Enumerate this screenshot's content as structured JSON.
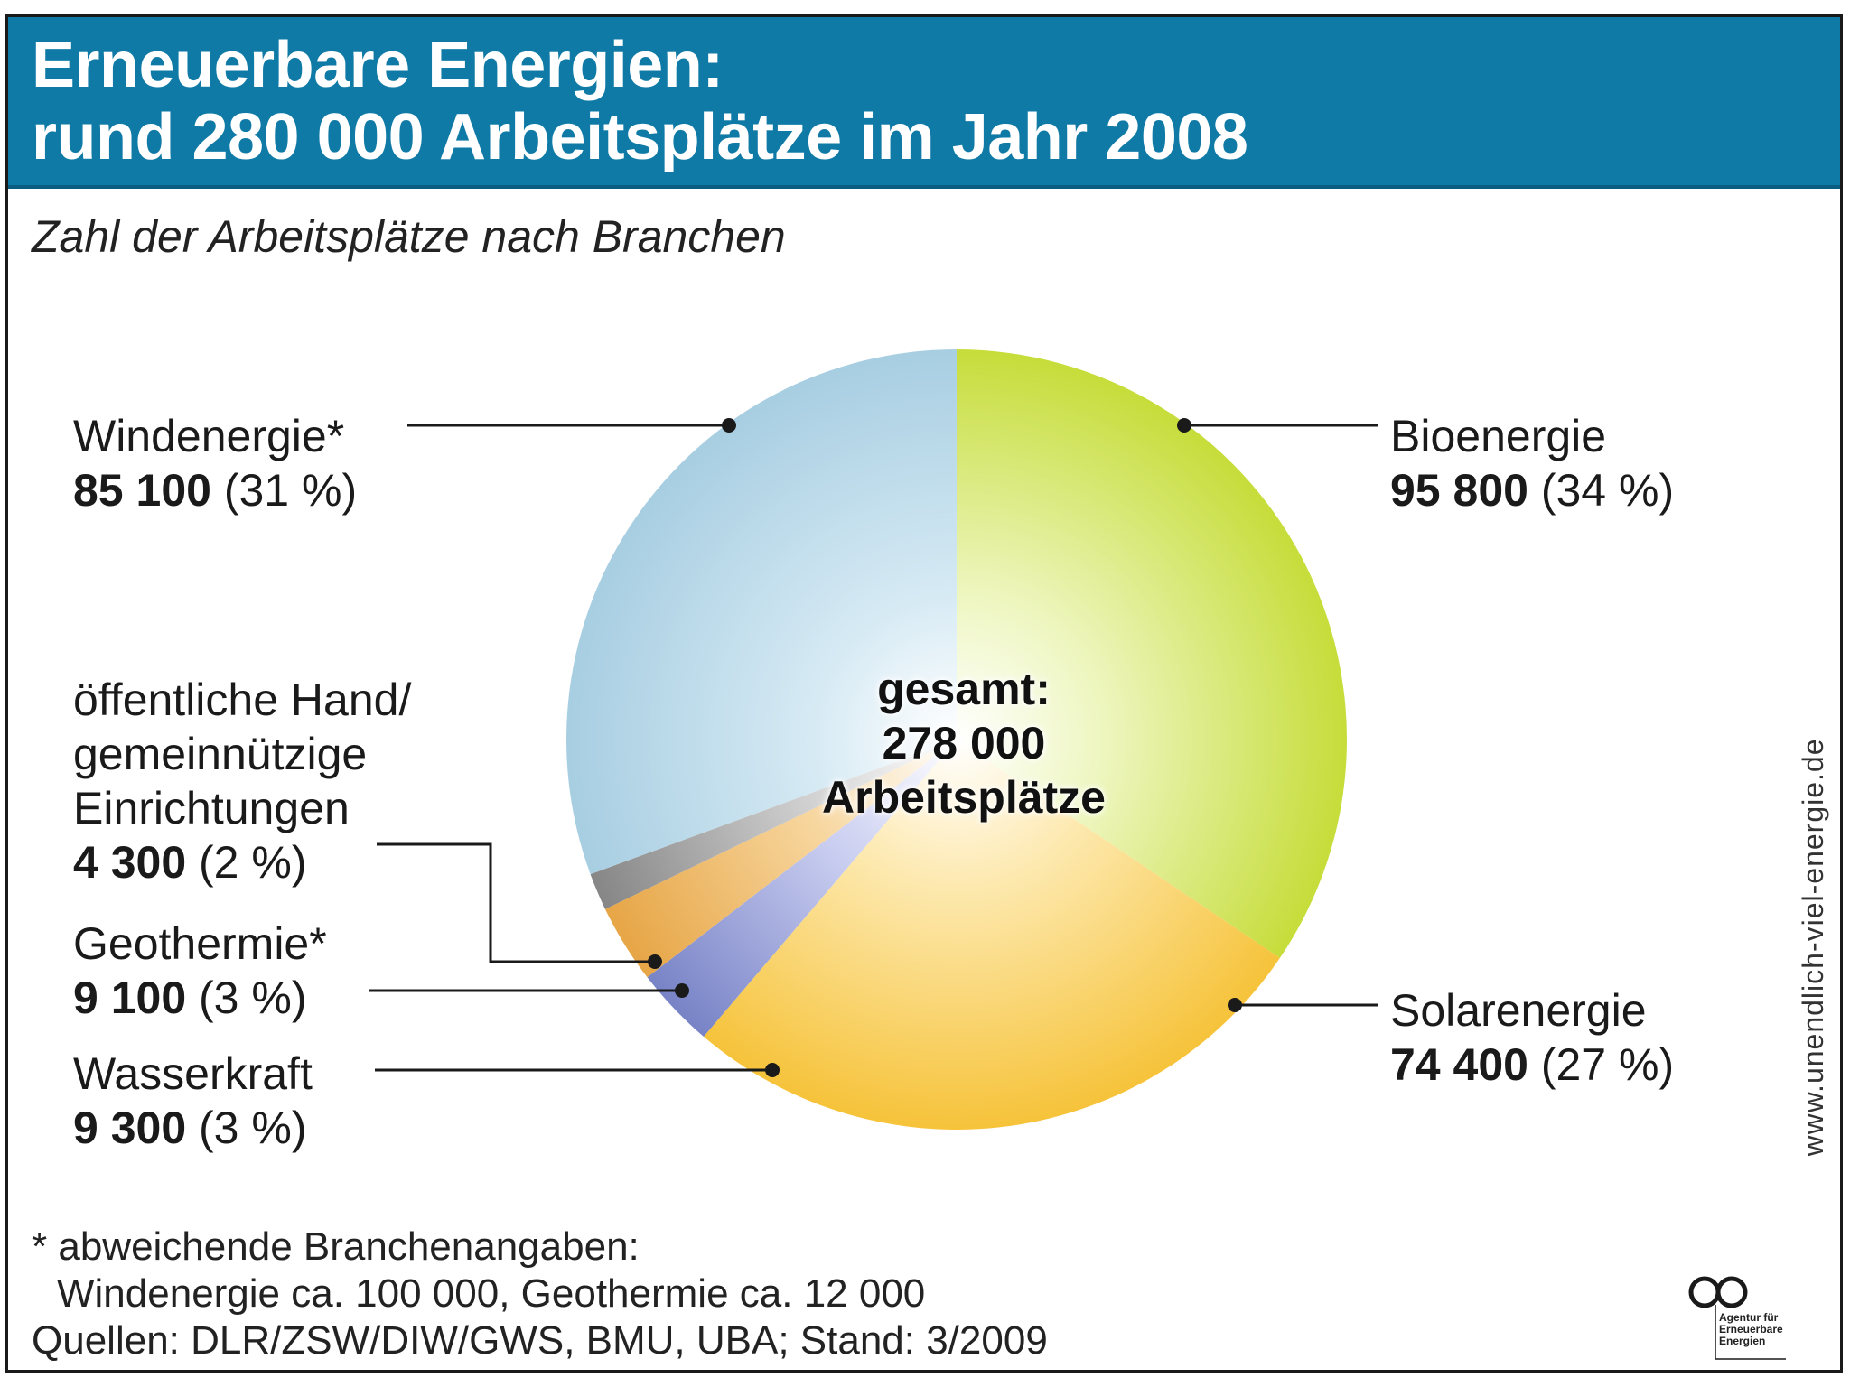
{
  "header": {
    "title_line1": "Erneuerbare Energien:",
    "title_line2": "rund 280 000 Arbeitsplätze im Jahr 2008"
  },
  "subtitle": "Zahl der Arbeitsplätze nach Branchen",
  "center": {
    "line1": "gesamt:",
    "line2": "278 000",
    "line3": "Arbeitsplätze"
  },
  "labels": {
    "bio": {
      "name": "Bioenergie",
      "value": "95 800",
      "pct": "(34 %)"
    },
    "solar": {
      "name": "Solarenergie",
      "value": "74 400",
      "pct": "(27 %)"
    },
    "wind": {
      "name": "Windenergie*",
      "value": "85 100",
      "pct": "(31 %)"
    },
    "public": {
      "name1": "öffentliche Hand/",
      "name2": "gemeinnützige",
      "name3": "Einrichtungen",
      "value": "4 300",
      "pct": "(2 %)"
    },
    "geo": {
      "name": "Geothermie*",
      "value": "9 100",
      "pct": "(3 %)"
    },
    "water": {
      "name": "Wasserkraft",
      "value": "9 300",
      "pct": "(3 %)"
    }
  },
  "footnote": {
    "line1": "* abweichende Branchenangaben:",
    "line2": "Windenergie ca. 100 000, Geothermie ca. 12 000",
    "line3": "Quellen: DLR/ZSW/DIW/GWS, BMU, UBA; Stand: 3/2009"
  },
  "side_url": "www.unendlich-viel-energie.de",
  "logo": {
    "text1": "Agentur für",
    "text2": "Erneuerbare",
    "text3": "Energien"
  },
  "colors": {
    "header_bg": "#0f7aa6",
    "bio": "#c9df3c",
    "solar": "#f7c640",
    "water": "#7b86c9",
    "geo": "#e9a84a",
    "public": "#8c8c8c",
    "wind": "#a9cfe3"
  },
  "chart_data": {
    "type": "pie",
    "title": "Erneuerbare Energien: rund 280 000 Arbeitsplätze im Jahr 2008",
    "subtitle": "Zahl der Arbeitsplätze nach Branchen",
    "total": 278000,
    "categories": [
      "Bioenergie",
      "Solarenergie",
      "Wasserkraft",
      "Geothermie",
      "öffentliche Hand/gemeinnützige Einrichtungen",
      "Windenergie"
    ],
    "values": [
      95800,
      74400,
      9300,
      9100,
      4300,
      85100
    ],
    "percent": [
      34,
      27,
      3,
      3,
      2,
      31
    ]
  }
}
